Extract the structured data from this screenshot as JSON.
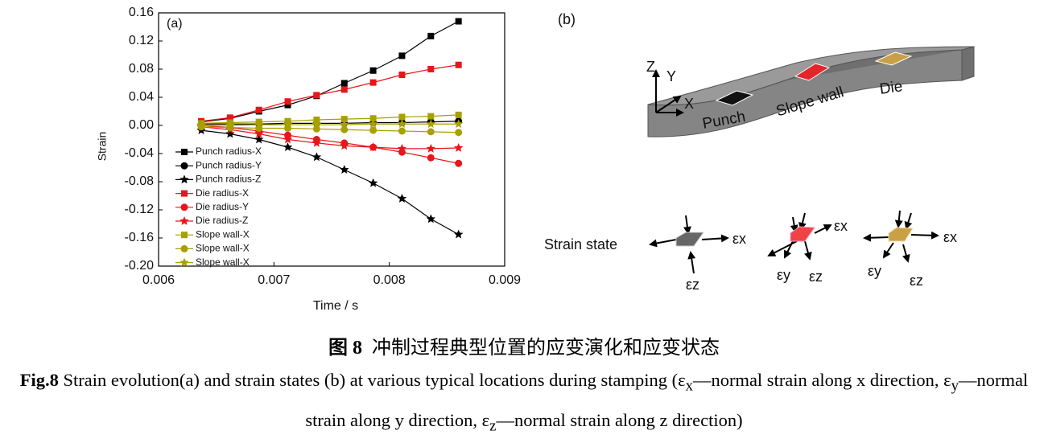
{
  "chart_data": {
    "type": "line",
    "annotation": "(a)",
    "x_label": "Time / s",
    "y_label": "Strain",
    "x": [
      0.00637,
      0.00662,
      0.00687,
      0.00712,
      0.00737,
      0.00761,
      0.00786,
      0.00811,
      0.00836,
      0.0086
    ],
    "xlim": [
      0.006,
      0.009
    ],
    "xticks": [
      0.006,
      0.007,
      0.008,
      0.009
    ],
    "ylim": [
      -0.2,
      0.16
    ],
    "yticks": [
      0.16,
      0.12,
      0.08,
      0.04,
      {
        "value": 0,
        "label": "0.00"
      },
      -0.04,
      -0.08,
      -0.12,
      -0.16,
      {
        "value": -0.2,
        "label": "-0.20"
      }
    ],
    "grid": false,
    "legend": "lower-left",
    "series": [
      {
        "name": "Punch radius-X",
        "color": "#000000",
        "marker": "square",
        "values": [
          0.005,
          0.01,
          0.02,
          0.029,
          0.042,
          0.06,
          0.078,
          0.099,
          0.127,
          0.148
        ]
      },
      {
        "name": "Punch radius-Y",
        "color": "#000000",
        "marker": "circle",
        "values": [
          0.002,
          0.002,
          0.002,
          0.003,
          0.003,
          0.003,
          0.004,
          0.004,
          0.005,
          0.006
        ]
      },
      {
        "name": "Punch radius-Z",
        "color": "#000000",
        "marker": "star",
        "values": [
          -0.007,
          -0.012,
          -0.02,
          -0.031,
          -0.045,
          -0.063,
          -0.082,
          -0.104,
          -0.133,
          -0.155
        ]
      },
      {
        "name": "Die radius-X",
        "color": "#e8161b",
        "marker": "square",
        "values": [
          0.006,
          0.011,
          0.022,
          0.034,
          0.043,
          0.051,
          0.061,
          0.072,
          0.08,
          0.086
        ]
      },
      {
        "name": "Die radius-Y",
        "color": "#e8161b",
        "marker": "circle",
        "values": [
          0.0,
          -0.003,
          -0.008,
          -0.014,
          -0.02,
          -0.025,
          -0.031,
          -0.038,
          -0.046,
          -0.054
        ]
      },
      {
        "name": "Die radius-Z",
        "color": "#e8161b",
        "marker": "star",
        "values": [
          -0.002,
          -0.006,
          -0.012,
          -0.02,
          -0.025,
          -0.029,
          -0.031,
          -0.033,
          -0.033,
          -0.032
        ]
      },
      {
        "name": "Slope wall-X",
        "color": "#a8a000",
        "marker": "square",
        "values": [
          0.003,
          0.004,
          0.005,
          0.006,
          0.008,
          0.009,
          0.01,
          0.012,
          0.013,
          0.015
        ]
      },
      {
        "name": "Slope wall-X",
        "color": "#a8a000",
        "marker": "circle",
        "values": [
          -0.002,
          -0.003,
          -0.004,
          -0.004,
          -0.005,
          -0.006,
          -0.007,
          -0.008,
          -0.009,
          -0.01
        ]
      },
      {
        "name": "Slope wall-X",
        "color": "#a8a000",
        "marker": "star",
        "values": [
          0.0,
          0.0,
          0.001,
          0.001,
          0.001,
          0.001,
          0.002,
          0.002,
          0.002,
          0.002
        ]
      }
    ]
  },
  "panel_b": {
    "label": "(b)",
    "axes": [
      "Z",
      "Y",
      "X"
    ],
    "locations": [
      "Punch",
      "Slope wall",
      "Die"
    ],
    "strain_state": "Strain state",
    "eps": [
      "εx",
      "εz",
      "εx",
      "εy",
      "εz",
      "εx",
      "εy",
      "εz"
    ]
  },
  "caption": {
    "zh_label": "图 8",
    "zh_text": "冲制过程典型位置的应变演化和应变状态",
    "en_label": "Fig.8",
    "en_parts": [
      " Strain evolution(a) and strain states (b) at various typical locations during stamping (ε",
      "x",
      "—normal strain along x direction, ε",
      "y",
      "—normal strain along y direction, ε",
      "z",
      "—normal strain along z direction)"
    ]
  }
}
